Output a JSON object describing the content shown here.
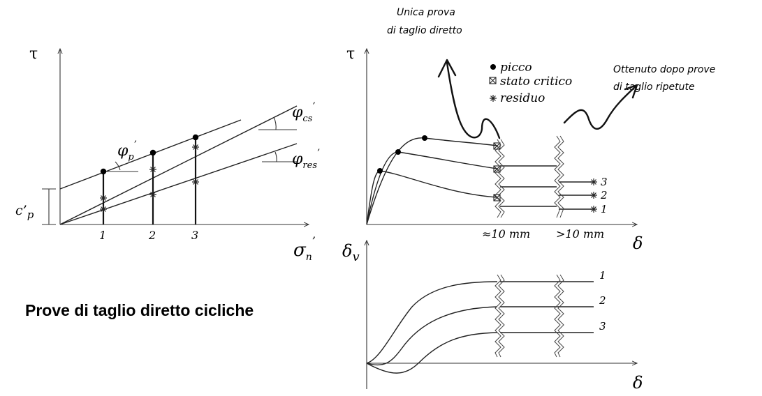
{
  "title": "Prove di taglio diretto cicliche",
  "notes": {
    "single_test": [
      "Unica prova",
      "di taglio diretto"
    ],
    "repeated_tests": [
      "Ottenuto dopo prove",
      "di taglio ripetute"
    ]
  },
  "left_plot": {
    "y_axis": "τ",
    "x_axis_main": "σ",
    "x_axis_sub": "n",
    "x_axis_prime": "’",
    "intercept_main": "c’",
    "intercept_sub": "p",
    "tests": [
      "1",
      "2",
      "3"
    ],
    "phi_main": "φ",
    "phi_p_sub": "p",
    "phi_cs_sub": "cs",
    "phi_res_sub": "res",
    "prime": "’"
  },
  "right_plot": {
    "y_axis": "τ",
    "x_axis": "δ",
    "legend": [
      "picco",
      "stato critico",
      "residuo"
    ],
    "break1_label": "≈10 mm",
    "break2_label": ">10 mm",
    "curve_labels": [
      "3",
      "2",
      "1"
    ]
  },
  "bottom_plot": {
    "y_axis_main": "δ",
    "y_axis_sub": "v",
    "x_axis": "δ",
    "curve_labels": [
      "1",
      "2",
      "3"
    ]
  }
}
